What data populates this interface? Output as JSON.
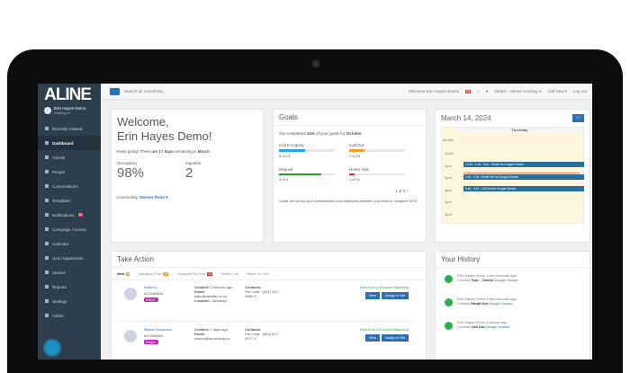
{
  "brand": "ALINE",
  "user": {
    "name": "Erin Hayes Demo",
    "settings": "Settings ▾"
  },
  "sidebar": {
    "items": [
      {
        "label": "Recently Viewed"
      },
      {
        "label": "Dashboard",
        "active": true
      },
      {
        "label": "Activity"
      },
      {
        "label": "People"
      },
      {
        "label": "Conversations"
      },
      {
        "label": "Templates"
      },
      {
        "label": "Notifications",
        "badge": "50"
      },
      {
        "label": "Campaign / Events"
      },
      {
        "label": "Calendar"
      },
      {
        "label": "Unit / Apartments"
      },
      {
        "label": "Service"
      },
      {
        "label": "Reports"
      },
      {
        "label": "Settings"
      },
      {
        "label": "Admin"
      }
    ]
  },
  "topbar": {
    "search_placeholder": "Search for something...",
    "welcome": "Welcome Erin Hayes Demo!",
    "notif_count": "50",
    "community": "DEMO - Senior Housing ▾",
    "add_new": "Add New ▾",
    "logout": "Log out"
  },
  "welcome": {
    "line1": "Welcome,",
    "line2": "Erin Hayes Demo!",
    "keep_pre": "Keep going! There ",
    "keep_bold": "are 17 days",
    "keep_mid": " remaining in ",
    "keep_month": "March",
    "occupancy_label": "Occupancy",
    "occupancy": "98%",
    "inquiries_label": "Inquiries",
    "inquiries": "2",
    "community_label": "Community:",
    "community": "Denver Point ▾"
  },
  "goals": {
    "title": "Goals",
    "intro_pre": "You completed ",
    "intro_pct": "34%",
    "intro_mid": " of your goals for ",
    "intro_month": "October",
    "items": [
      {
        "label": "Call In Inquiry",
        "progress": "6 of 13",
        "fraction": 0.46,
        "color": "#2aa7d8"
      },
      {
        "label": "Call Out",
        "progress": "7 of 25",
        "fraction": 0.28,
        "color": "#f0a030"
      },
      {
        "label": "Deposit",
        "progress": "3 of 4",
        "fraction": 0.75,
        "color": "#2e9a3e"
      },
      {
        "label": "Home Visit",
        "progress": "1 of 11",
        "fraction": 0.09,
        "color": "#d03030"
      }
    ],
    "page": "1 of 2 ›",
    "note": "Goals are set by your administrator and represent activities you need to complete MTD."
  },
  "calendar": {
    "date": "March 14, 2024",
    "day": "Thursday",
    "allday": "all-day",
    "hours": [
      "12pm",
      "1pm",
      "2pm",
      "3pm",
      "4pm",
      "5pm"
    ],
    "events": [
      "12:45 - 1:15 - Tour - Onsite for Dougie Houser",
      "1:45 - 2:15 - Email Out for Dougie Houser",
      "2:45 - 3:15 - Call Out for Dougie Houser"
    ]
  },
  "take_action": {
    "title": "Take Action",
    "tabs": [
      {
        "label": "New",
        "count": "8",
        "color": "#f0a030"
      },
      {
        "label": "Assigned Due",
        "count": "10",
        "color": "#f0a030"
      },
      {
        "label": "Assigned No Due",
        "count": "26",
        "color": "#d03030"
      },
      {
        "label": "Watch List"
      },
      {
        "label": "Move In / Out"
      }
    ],
    "rows": [
      {
        "name": "Katie Ko",
        "id": "#CS185634",
        "tag": "ENQC",
        "created_label": "Created:",
        "created": "3 minutes ago",
        "email_label": "Email:",
        "email": "katio@deloitte.co.nz",
        "location_label": "Location:",
        "location": "Tauranga",
        "contacts_label": "Contacts:",
        "contact": "Pre Lead : (021) 167-4585 ✔",
        "source": "New from a Enquire Marketing"
      },
      {
        "name": "Mason Dickerson",
        "id": "#CS185633",
        "tag": "ENQC",
        "created_label": "Created:",
        "created": "2 days ago",
        "email_label": "Email:",
        "email": "mason@structurely.co",
        "contacts_label": "Contacts:",
        "contact": "Pre Lead : (865) 617-0277 ✔",
        "source": "New from a Enquire Marketing"
      }
    ],
    "view": "View",
    "assign": "Assign to Me"
  },
  "history": {
    "title": "Your History",
    "items": [
      {
        "who": "Erin Hayes Demo a few seconds ago",
        "pre": "Created ",
        "what": "Tour - Onsite",
        "who2": "Dougie Houser"
      },
      {
        "who": "Erin Hayes Demo a few seconds ago",
        "pre": "Created ",
        "what": "Email Out",
        "who2": "Dougie Houser"
      },
      {
        "who": "Erin Hayes Demo a minute ago",
        "pre": "Created ",
        "what": "Call Out",
        "who2": "Dougie Houser"
      }
    ]
  }
}
